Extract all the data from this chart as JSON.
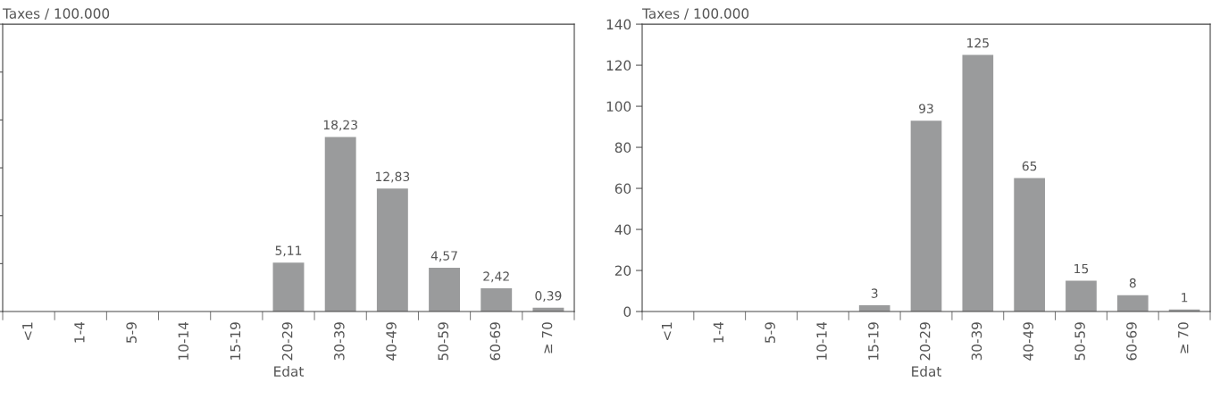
{
  "chart_data": [
    {
      "type": "bar",
      "ylabel": "Taxes / 100.000",
      "xlabel": "Edat",
      "categories": [
        "<1",
        "1-4",
        "5-9",
        "10-14",
        "15-19",
        "20-29",
        "30-39",
        "40-49",
        "50-59",
        "60-69",
        "≥ 70"
      ],
      "values": [
        null,
        null,
        null,
        null,
        null,
        5.11,
        18.23,
        12.83,
        4.57,
        2.42,
        0.39
      ],
      "value_labels": [
        null,
        null,
        null,
        null,
        null,
        "5,11",
        "18,23",
        "12,83",
        "4,57",
        "2,42",
        "0,39"
      ],
      "color": "#9a9b9c",
      "ylim": [
        0,
        30
      ],
      "yticks": [
        {
          "value": 0,
          "label": null
        },
        {
          "value": 5,
          "label": null
        },
        {
          "value": 10,
          "label": null
        },
        {
          "value": 15,
          "label": null
        },
        {
          "value": 20,
          "label": null
        },
        {
          "value": 25,
          "label": null
        },
        {
          "value": 30,
          "label": null
        }
      ],
      "tick_labels": "x",
      "grid": false
    },
    {
      "type": "bar",
      "ylabel": "Taxes / 100.000",
      "xlabel": "Edat",
      "categories": [
        "<1",
        "1-4",
        "5-9",
        "10-14",
        "15-19",
        "20-29",
        "30-39",
        "40-49",
        "50-59",
        "60-69",
        "≥ 70"
      ],
      "values": [
        null,
        null,
        null,
        null,
        3,
        93,
        125,
        65,
        15,
        8,
        1
      ],
      "value_labels": [
        null,
        null,
        null,
        null,
        "3",
        "93",
        "125",
        "65",
        "15",
        "8",
        "1"
      ],
      "color": "#9a9b9c",
      "ylim": [
        0,
        140
      ],
      "yticks": [
        0,
        20,
        40,
        60,
        80,
        100,
        120,
        140
      ],
      "grid": false
    }
  ]
}
